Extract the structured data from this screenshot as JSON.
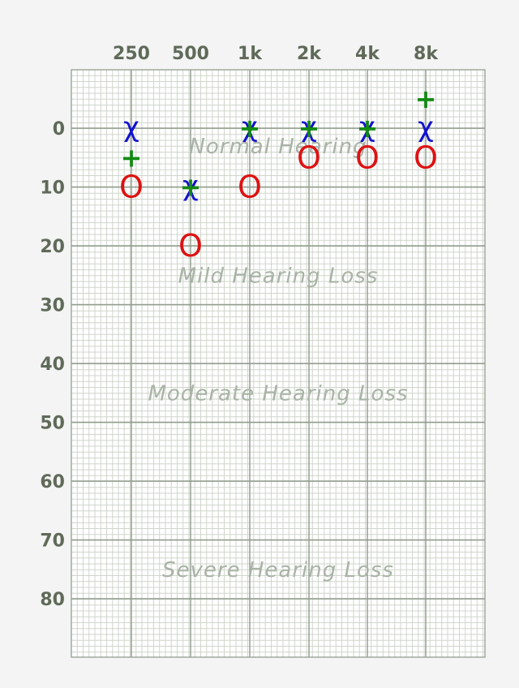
{
  "chart_data": {
    "type": "scatter",
    "x_categories": [
      "250",
      "500",
      "1k",
      "2k",
      "4k",
      "8k"
    ],
    "y_ticks": [
      "0",
      "10",
      "20",
      "30",
      "40",
      "50",
      "60",
      "70",
      "80"
    ],
    "ylim": [
      -10,
      90
    ],
    "y_inverted": true,
    "grid": true,
    "regions": [
      {
        "label": "Normal Hearing",
        "y": 3
      },
      {
        "label": "Mild Hearing Loss",
        "y": 25
      },
      {
        "label": "Moderate Hearing Loss",
        "y": 45
      },
      {
        "label": "Severe Hearing Loss",
        "y": 75
      }
    ],
    "series": [
      {
        "symbol": "X",
        "color": "#1212cc",
        "values": [
          0,
          10,
          0,
          0,
          0,
          0
        ]
      },
      {
        "symbol": "O",
        "color": "#dd1212",
        "values": [
          10,
          20,
          10,
          5,
          5,
          5
        ]
      },
      {
        "symbol": "+",
        "color": "#138a13",
        "values": [
          5,
          10,
          0,
          0,
          0,
          -5
        ]
      }
    ]
  }
}
